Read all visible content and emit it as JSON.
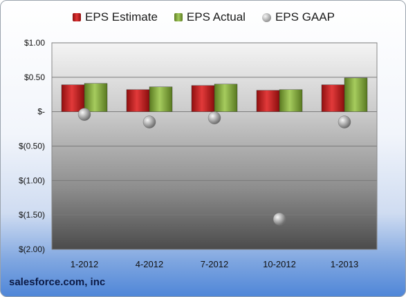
{
  "chart_data": {
    "type": "bar",
    "title": "",
    "xlabel": "",
    "ylabel": "",
    "categories": [
      "1-2012",
      "4-2012",
      "7-2012",
      "10-2012",
      "1-2013"
    ],
    "series": [
      {
        "name": "EPS Estimate",
        "kind": "bar",
        "color": "#c82424",
        "values": [
          0.39,
          0.32,
          0.38,
          0.31,
          0.39
        ]
      },
      {
        "name": "EPS Actual",
        "kind": "bar",
        "color": "#8bb04a",
        "values": [
          0.41,
          0.36,
          0.4,
          0.32,
          0.49
        ]
      },
      {
        "name": "EPS GAAP",
        "kind": "scatter",
        "color": "#b0b0b0",
        "values": [
          -0.04,
          -0.15,
          -0.09,
          -1.56,
          -0.15
        ]
      }
    ],
    "ylim": [
      -2.0,
      1.0
    ],
    "yticks": [
      1.0,
      0.5,
      0.0,
      -0.5,
      -1.0,
      -1.5,
      -2.0
    ],
    "ytick_labels": [
      "$1.00",
      "$0.50",
      "$-",
      "$(0.50)",
      "$(1.00)",
      "$(1.50)",
      "$(2.00)"
    ],
    "grid": true,
    "legend_position": "top"
  },
  "footer": {
    "company": "salesforce.com, inc"
  }
}
